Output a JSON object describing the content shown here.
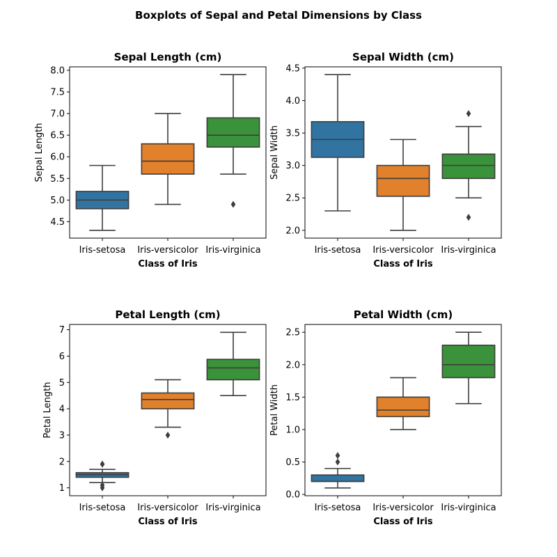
{
  "figure": {
    "suptitle": "Boxplots of Sepal and Petal Dimensions by Class",
    "line_color": "#3d3d3d",
    "palette": [
      "#3274a1",
      "#e1812c",
      "#3a923a"
    ]
  },
  "chart_data": [
    {
      "type": "box",
      "title": "Sepal Length (cm)",
      "xlabel": "Class of Iris",
      "ylabel": "Sepal Length",
      "categories": [
        "Iris-setosa",
        "Iris-versicolor",
        "Iris-virginica"
      ],
      "ylim": [
        4.12,
        8.08
      ],
      "yticks": [
        "4.5",
        "5.0",
        "5.5",
        "6.0",
        "6.5",
        "7.0",
        "7.5",
        "8.0"
      ],
      "boxes": [
        {
          "whisker_low": 4.3,
          "q1": 4.8,
          "median": 5.0,
          "q3": 5.2,
          "whisker_high": 5.8,
          "outliers": []
        },
        {
          "whisker_low": 4.9,
          "q1": 5.6,
          "median": 5.9,
          "q3": 6.3,
          "whisker_high": 7.0,
          "outliers": []
        },
        {
          "whisker_low": 5.6,
          "q1": 6.225,
          "median": 6.5,
          "q3": 6.9,
          "whisker_high": 7.9,
          "outliers": [
            4.9
          ]
        }
      ]
    },
    {
      "type": "box",
      "title": "Sepal Width (cm)",
      "xlabel": "Class of Iris",
      "ylabel": "Sepal Width",
      "categories": [
        "Iris-setosa",
        "Iris-versicolor",
        "Iris-virginica"
      ],
      "ylim": [
        1.88,
        4.52
      ],
      "yticks": [
        "2.0",
        "2.5",
        "3.0",
        "3.5",
        "4.0",
        "4.5"
      ],
      "boxes": [
        {
          "whisker_low": 2.3,
          "q1": 3.125,
          "median": 3.4,
          "q3": 3.675,
          "whisker_high": 4.4,
          "outliers": []
        },
        {
          "whisker_low": 2.0,
          "q1": 2.525,
          "median": 2.8,
          "q3": 3.0,
          "whisker_high": 3.4,
          "outliers": []
        },
        {
          "whisker_low": 2.5,
          "q1": 2.8,
          "median": 3.0,
          "q3": 3.175,
          "whisker_high": 3.6,
          "outliers": [
            3.8,
            2.2
          ]
        }
      ]
    },
    {
      "type": "box",
      "title": "Petal Length (cm)",
      "xlabel": "Class of Iris",
      "ylabel": "Petal Length",
      "categories": [
        "Iris-setosa",
        "Iris-versicolor",
        "Iris-virginica"
      ],
      "ylim": [
        0.7,
        7.2
      ],
      "yticks": [
        "1",
        "2",
        "3",
        "4",
        "5",
        "6",
        "7"
      ],
      "boxes": [
        {
          "whisker_low": 1.2,
          "q1": 1.4,
          "median": 1.5,
          "q3": 1.575,
          "whisker_high": 1.7,
          "outliers": [
            1.9,
            1.9,
            1.1,
            1.0
          ]
        },
        {
          "whisker_low": 3.3,
          "q1": 4.0,
          "median": 4.35,
          "q3": 4.6,
          "whisker_high": 5.1,
          "outliers": [
            3.0
          ]
        },
        {
          "whisker_low": 4.5,
          "q1": 5.1,
          "median": 5.55,
          "q3": 5.875,
          "whisker_high": 6.9,
          "outliers": []
        }
      ]
    },
    {
      "type": "box",
      "title": "Petal Width (cm)",
      "xlabel": "Class of Iris",
      "ylabel": "Petal Width",
      "categories": [
        "Iris-setosa",
        "Iris-versicolor",
        "Iris-virginica"
      ],
      "ylim": [
        -0.02,
        2.62
      ],
      "yticks": [
        "0.0",
        "0.5",
        "1.0",
        "1.5",
        "2.0",
        "2.5"
      ],
      "boxes": [
        {
          "whisker_low": 0.1,
          "q1": 0.2,
          "median": 0.2,
          "q3": 0.3,
          "whisker_high": 0.4,
          "outliers": [
            0.6,
            0.5
          ]
        },
        {
          "whisker_low": 1.0,
          "q1": 1.2,
          "median": 1.3,
          "q3": 1.5,
          "whisker_high": 1.8,
          "outliers": []
        },
        {
          "whisker_low": 1.4,
          "q1": 1.8,
          "median": 2.0,
          "q3": 2.3,
          "whisker_high": 2.5,
          "outliers": []
        }
      ]
    }
  ]
}
